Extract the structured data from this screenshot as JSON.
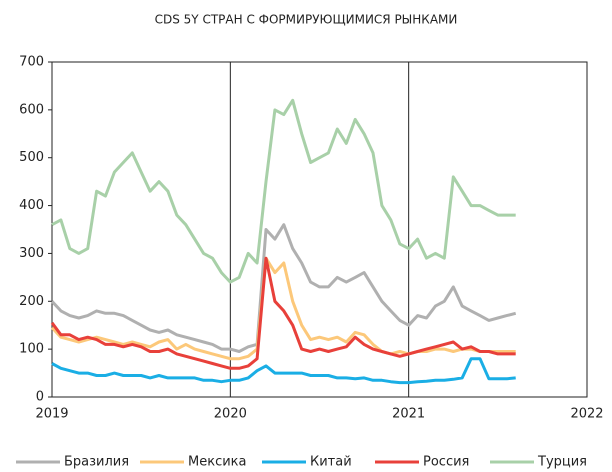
{
  "chart_data": {
    "type": "line",
    "title": "CDS 5Y СТРАН С ФОРМИРУЮЩИМИСЯ РЫНКАМИ",
    "x": [
      2019,
      2019.05,
      2019.1,
      2019.15,
      2019.2,
      2019.25,
      2019.3,
      2019.35,
      2019.4,
      2019.45,
      2019.5,
      2019.55,
      2019.6,
      2019.65,
      2019.7,
      2019.75,
      2019.8,
      2019.85,
      2019.9,
      2019.95,
      2020,
      2020.05,
      2020.1,
      2020.15,
      2020.2,
      2020.25,
      2020.3,
      2020.35,
      2020.4,
      2020.45,
      2020.5,
      2020.55,
      2020.6,
      2020.65,
      2020.7,
      2020.75,
      2020.8,
      2020.85,
      2020.9,
      2020.95,
      2021,
      2021.05,
      2021.1,
      2021.15,
      2021.2,
      2021.25,
      2021.3,
      2021.35,
      2021.4,
      2021.45,
      2021.5,
      2021.55,
      2021.6
    ],
    "series": [
      {
        "name": "Бразилия",
        "color": "#b0b0b0",
        "values": [
          200,
          180,
          170,
          165,
          170,
          180,
          175,
          175,
          170,
          160,
          150,
          140,
          135,
          140,
          130,
          125,
          120,
          115,
          110,
          100,
          100,
          95,
          105,
          110,
          350,
          330,
          360,
          310,
          280,
          240,
          230,
          230,
          250,
          240,
          250,
          260,
          230,
          200,
          180,
          160,
          150,
          170,
          165,
          190,
          200,
          230,
          190,
          180,
          170,
          160,
          165,
          170,
          175
        ]
      },
      {
        "name": "Мексика",
        "color": "#fcc87a",
        "values": [
          145,
          125,
          120,
          115,
          120,
          125,
          120,
          115,
          110,
          115,
          110,
          105,
          115,
          120,
          100,
          110,
          100,
          95,
          90,
          85,
          80,
          80,
          85,
          100,
          290,
          260,
          280,
          200,
          150,
          120,
          125,
          120,
          125,
          115,
          135,
          130,
          110,
          95,
          90,
          95,
          90,
          95,
          95,
          100,
          100,
          95,
          100,
          100,
          95,
          95,
          95,
          95,
          95
        ]
      },
      {
        "name": "Китай",
        "color": "#1aaee5",
        "values": [
          70,
          60,
          55,
          50,
          50,
          45,
          45,
          50,
          45,
          45,
          45,
          40,
          45,
          40,
          40,
          40,
          40,
          35,
          35,
          32,
          35,
          35,
          40,
          55,
          65,
          50,
          50,
          50,
          50,
          45,
          45,
          45,
          40,
          40,
          38,
          40,
          35,
          35,
          32,
          30,
          30,
          32,
          33,
          35,
          35,
          37,
          40,
          80,
          80,
          38,
          38,
          38,
          40
        ]
      },
      {
        "name": "Россия",
        "color": "#e8403a",
        "values": [
          155,
          130,
          130,
          120,
          125,
          120,
          110,
          110,
          105,
          110,
          105,
          95,
          95,
          100,
          90,
          85,
          80,
          75,
          70,
          65,
          60,
          60,
          65,
          80,
          290,
          200,
          180,
          150,
          100,
          95,
          100,
          95,
          100,
          105,
          125,
          110,
          100,
          95,
          90,
          85,
          90,
          95,
          100,
          105,
          110,
          115,
          100,
          105,
          95,
          95,
          90,
          90,
          90
        ]
      },
      {
        "name": "Турция",
        "color": "#a8d0a8",
        "values": [
          360,
          370,
          310,
          300,
          310,
          430,
          420,
          470,
          490,
          510,
          470,
          430,
          450,
          430,
          380,
          360,
          330,
          300,
          290,
          260,
          240,
          250,
          300,
          280,
          450,
          600,
          590,
          620,
          550,
          490,
          500,
          510,
          560,
          530,
          580,
          550,
          510,
          400,
          370,
          320,
          310,
          330,
          290,
          300,
          290,
          460,
          430,
          400,
          400,
          390,
          380,
          380,
          380
        ]
      }
    ],
    "xlim": [
      2019,
      2022
    ],
    "xticks": [
      2019,
      2020,
      2021,
      2022
    ],
    "ylim": [
      0,
      700
    ],
    "yticks": [
      0,
      100,
      200,
      300,
      400,
      500,
      600,
      700
    ],
    "grid": "x",
    "legend": "bottom"
  }
}
